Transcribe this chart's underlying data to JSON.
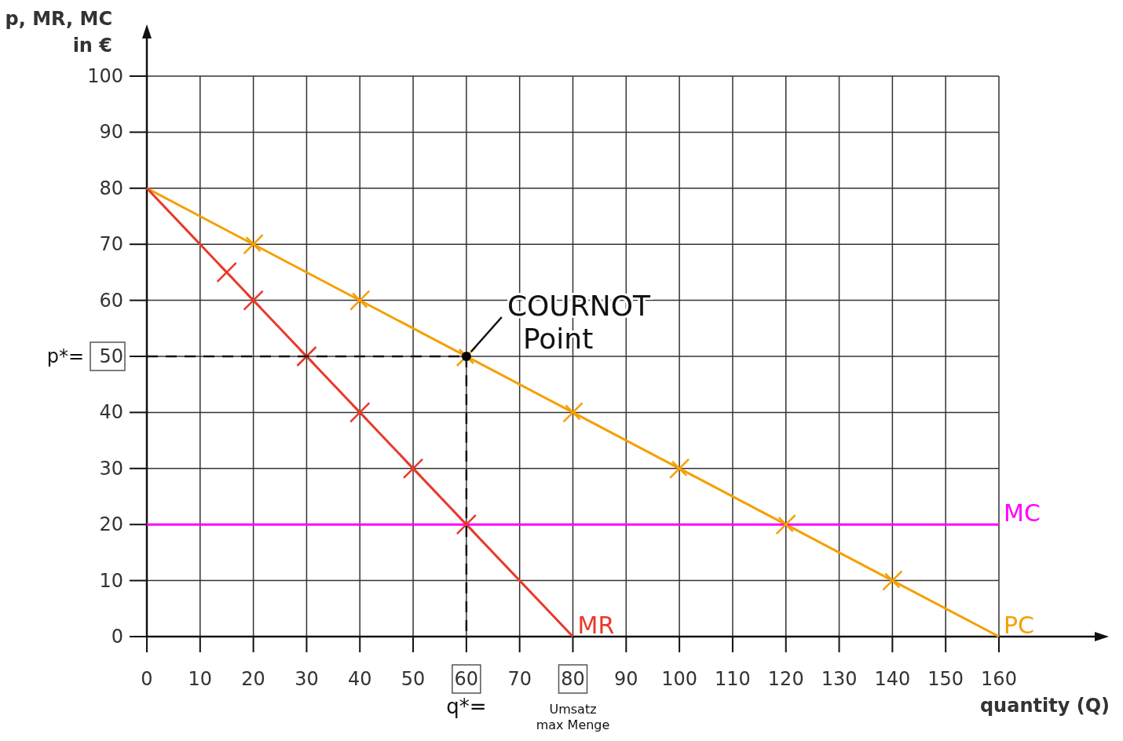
{
  "chart_data": {
    "type": "line",
    "xlabel": "quantity (Q)",
    "ylabel": "p, MR, MC in €",
    "xlim": [
      0,
      160
    ],
    "ylim": [
      0,
      100
    ],
    "xticks": [
      0,
      10,
      20,
      30,
      40,
      50,
      60,
      70,
      80,
      90,
      100,
      110,
      120,
      130,
      140,
      150,
      160
    ],
    "yticks": [
      0,
      10,
      20,
      30,
      40,
      50,
      60,
      70,
      80,
      90,
      100
    ],
    "grid": true,
    "line_style": "solid",
    "series": [
      {
        "name": "PC",
        "color": "#f5a000",
        "x": [
          0,
          160
        ],
        "values": [
          80,
          0
        ]
      },
      {
        "name": "MR",
        "color": "#e8392a",
        "x": [
          0,
          80
        ],
        "values": [
          80,
          0
        ]
      },
      {
        "name": "MC",
        "color": "#ff00ff",
        "x": [
          0,
          160
        ],
        "values": [
          20,
          20
        ]
      },
      {
        "type": "scatter",
        "marker": "cross",
        "color": "#f5a000",
        "x": [
          20,
          40,
          60,
          80,
          100,
          120,
          140
        ],
        "values": [
          70,
          60,
          50,
          40,
          30,
          20,
          10
        ]
      },
      {
        "type": "scatter",
        "marker": "cross",
        "color": "#e8392a",
        "x": [
          15,
          20,
          30,
          40,
          50,
          60
        ],
        "values": [
          65,
          60,
          50,
          40,
          30,
          20
        ]
      },
      {
        "line_style": "dashed",
        "color": "#111111",
        "x": [
          0,
          60
        ],
        "values": [
          50,
          50
        ]
      },
      {
        "line_style": "dashed",
        "color": "#111111",
        "x": [
          60,
          60
        ],
        "values": [
          50,
          0
        ]
      },
      {
        "type": "scatter",
        "marker": "circle",
        "color": "#000000",
        "x": [
          60
        ],
        "values": [
          50
        ]
      }
    ],
    "annotations": [
      {
        "text": "COURNOT Point",
        "x": 60,
        "y": 50
      },
      "p*=",
      "q*=",
      "Umsatz max Menge"
    ]
  }
}
